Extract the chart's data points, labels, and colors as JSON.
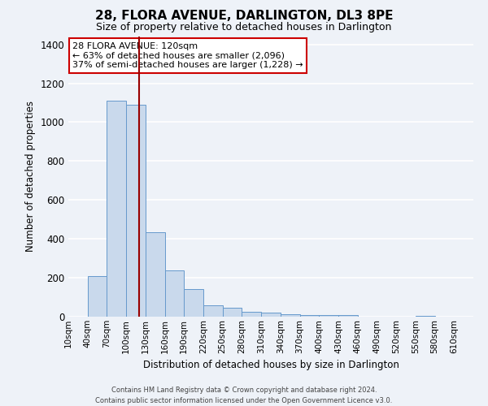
{
  "title": "28, FLORA AVENUE, DARLINGTON, DL3 8PE",
  "subtitle": "Size of property relative to detached houses in Darlington",
  "xlabel": "Distribution of detached houses by size in Darlington",
  "ylabel": "Number of detached properties",
  "bar_values": [
    0,
    210,
    1110,
    1090,
    435,
    240,
    140,
    60,
    48,
    25,
    20,
    12,
    8,
    10,
    8,
    0,
    0,
    0,
    5,
    0,
    0
  ],
  "bin_edges": [
    10,
    40,
    70,
    100,
    130,
    160,
    190,
    220,
    250,
    280,
    310,
    340,
    370,
    400,
    430,
    460,
    490,
    520,
    550,
    580,
    610
  ],
  "tick_labels": [
    "10sqm",
    "40sqm",
    "70sqm",
    "100sqm",
    "130sqm",
    "160sqm",
    "190sqm",
    "220sqm",
    "250sqm",
    "280sqm",
    "310sqm",
    "340sqm",
    "370sqm",
    "400sqm",
    "430sqm",
    "460sqm",
    "490sqm",
    "520sqm",
    "550sqm",
    "580sqm",
    "610sqm"
  ],
  "bar_color": "#c9d9ec",
  "bar_edge_color": "#6699cc",
  "property_line_x": 120,
  "property_line_color": "#990000",
  "annotation_title": "28 FLORA AVENUE: 120sqm",
  "annotation_line1": "← 63% of detached houses are smaller (2,096)",
  "annotation_line2": "37% of semi-detached houses are larger (1,228) →",
  "annotation_box_facecolor": "#ffffff",
  "annotation_box_edgecolor": "#cc0000",
  "ylim": [
    0,
    1440
  ],
  "yticks": [
    0,
    200,
    400,
    600,
    800,
    1000,
    1200,
    1400
  ],
  "background_color": "#eef2f8",
  "grid_color": "#ffffff",
  "footer1": "Contains HM Land Registry data © Crown copyright and database right 2024.",
  "footer2": "Contains public sector information licensed under the Open Government Licence v3.0."
}
